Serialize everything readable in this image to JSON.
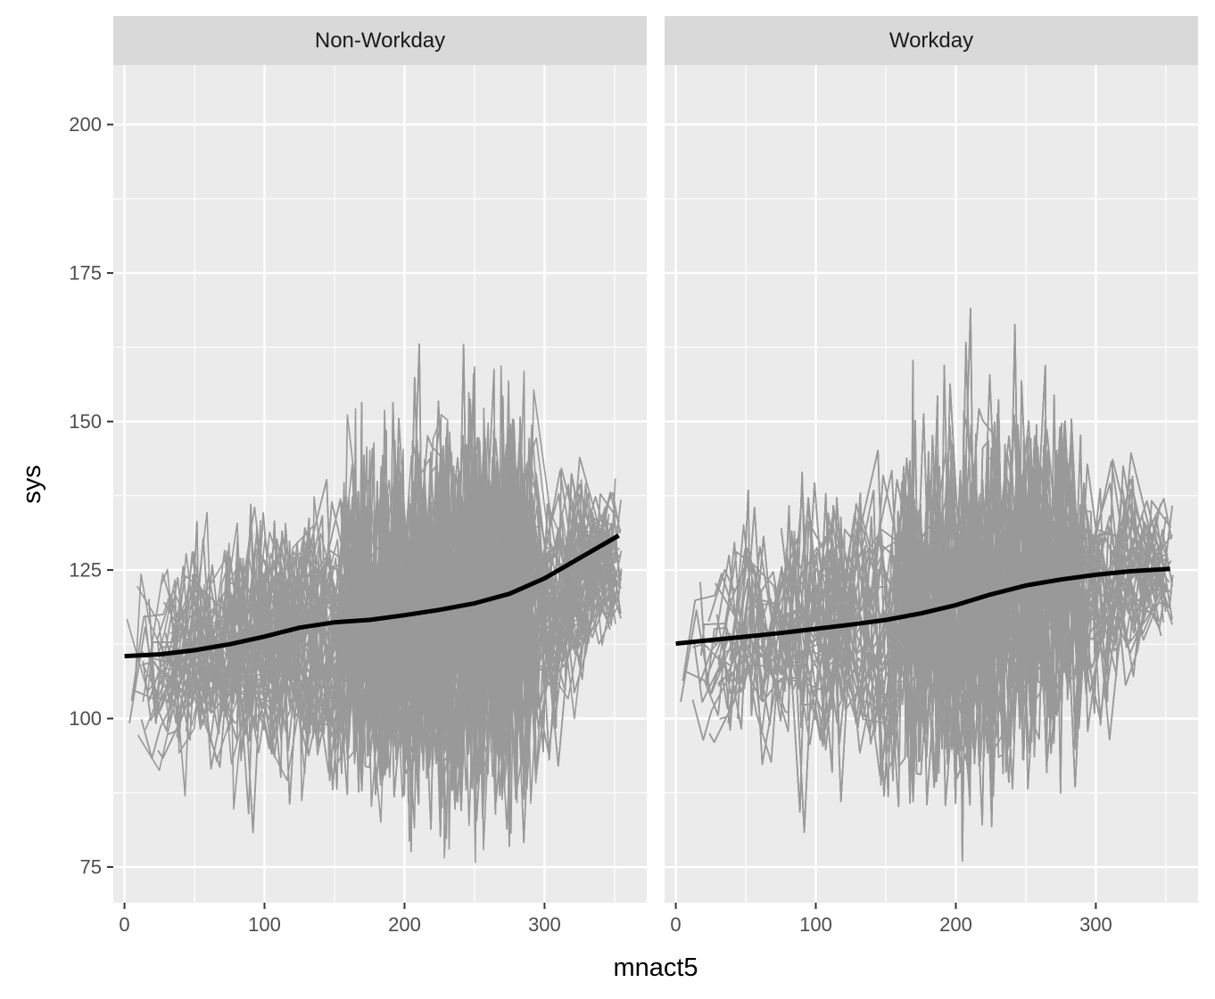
{
  "chart_data": {
    "type": "line",
    "x_var": "mnact5",
    "y_var": "sys",
    "xlabel": "mnact5",
    "ylabel": "sys",
    "xlim": [
      -8,
      373
    ],
    "ylim": [
      69,
      210
    ],
    "x_ticks": [
      0,
      100,
      200,
      300
    ],
    "y_ticks": [
      75,
      100,
      125,
      150,
      175,
      200
    ],
    "grid": true,
    "background": "#ebebeb",
    "strip_color": "#d9d9d9",
    "raw_line_color": "#999999",
    "smooth_line_color": "#000000",
    "panels": [
      {
        "label": "Non-Workday",
        "x_range": [
          0,
          355
        ],
        "raw_center": [
          [
            0,
            109
          ],
          [
            50,
            110
          ],
          [
            100,
            112
          ],
          [
            150,
            115
          ],
          [
            200,
            117
          ],
          [
            250,
            118
          ],
          [
            300,
            120
          ],
          [
            340,
            126
          ]
        ],
        "raw_spread": [
          [
            0,
            13
          ],
          [
            60,
            15
          ],
          [
            120,
            20
          ],
          [
            160,
            22
          ],
          [
            200,
            27
          ],
          [
            240,
            30
          ],
          [
            280,
            28
          ],
          [
            320,
            14
          ],
          [
            355,
            10
          ]
        ],
        "smooth": {
          "x": [
            0,
            25,
            50,
            75,
            100,
            125,
            150,
            175,
            200,
            225,
            250,
            275,
            300,
            325,
            353
          ],
          "y": [
            110.5,
            110.8,
            111.5,
            112.5,
            113.8,
            115.3,
            116.2,
            116.6,
            117.4,
            118.3,
            119.4,
            121.0,
            123.6,
            127.0,
            130.8
          ]
        }
      },
      {
        "label": "Workday",
        "x_range": [
          0,
          355
        ],
        "raw_center": [
          [
            0,
            112
          ],
          [
            50,
            113
          ],
          [
            100,
            115
          ],
          [
            150,
            117
          ],
          [
            200,
            119
          ],
          [
            250,
            122
          ],
          [
            300,
            124
          ],
          [
            350,
            125
          ]
        ],
        "raw_spread": [
          [
            0,
            12
          ],
          [
            50,
            16
          ],
          [
            100,
            20
          ],
          [
            150,
            24
          ],
          [
            200,
            30
          ],
          [
            240,
            30
          ],
          [
            280,
            24
          ],
          [
            320,
            14
          ],
          [
            355,
            10
          ]
        ],
        "smooth": {
          "x": [
            0,
            25,
            50,
            75,
            100,
            125,
            150,
            175,
            200,
            225,
            250,
            275,
            300,
            325,
            353
          ],
          "y": [
            112.6,
            113.2,
            113.8,
            114.4,
            115.1,
            115.8,
            116.6,
            117.7,
            119.1,
            120.9,
            122.4,
            123.4,
            124.2,
            124.8,
            125.2
          ]
        }
      }
    ]
  }
}
